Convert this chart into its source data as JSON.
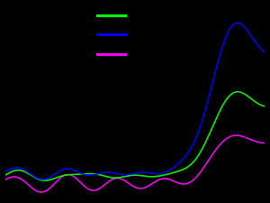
{
  "background_color": "#000000",
  "line_colors": [
    "#00ff00",
    "#0000ff",
    "#ff00ff"
  ],
  "figsize": [
    3.0,
    2.26
  ],
  "dpi": 100
}
